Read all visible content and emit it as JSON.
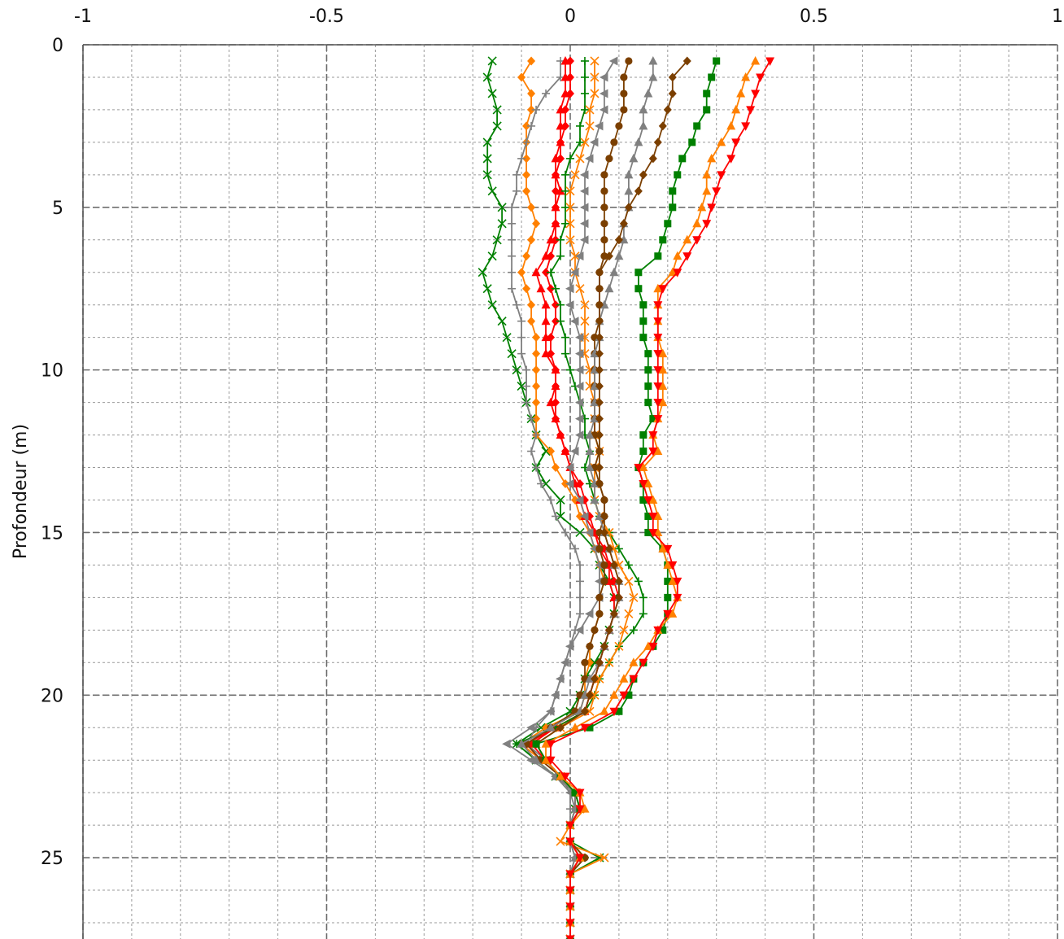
{
  "chart_data": {
    "type": "line",
    "title": "",
    "xlabel": "",
    "ylabel": "Profondeur (m)",
    "xlim": [
      -1,
      1
    ],
    "ylim": [
      0,
      27.5
    ],
    "y_inverted": true,
    "x_axis_position": "top",
    "grid": true,
    "grid_style": "dashed",
    "x_ticks": [
      -1,
      -0.5,
      0,
      0.5,
      1
    ],
    "x_tick_labels": [
      "-1",
      "-0.5",
      "0",
      "0.5",
      "1"
    ],
    "y_ticks": [
      0,
      5,
      10,
      15,
      20,
      25
    ],
    "y_tick_labels": [
      "0",
      "5",
      "10",
      "15",
      "20",
      "25"
    ],
    "x_minor_step": 0.1,
    "y_minor_step": 1,
    "depths": [
      0.5,
      1,
      1.5,
      2,
      2.5,
      3,
      3.5,
      4,
      4.5,
      5,
      5.5,
      6,
      6.5,
      7,
      7.5,
      8,
      8.5,
      9,
      9.5,
      10,
      10.5,
      11,
      11.5,
      12,
      12.5,
      13,
      13.5,
      14,
      14.5,
      15,
      15.5,
      16,
      16.5,
      17,
      17.5,
      18,
      18.5,
      19,
      19.5,
      20,
      20.5,
      21,
      21.5,
      22,
      22.5,
      23,
      23.5,
      24,
      24.5,
      25,
      25.5,
      26,
      26.5,
      27,
      27.5
    ],
    "series": [
      {
        "color": "#008000",
        "marker": "x",
        "values": [
          -0.16,
          -0.17,
          -0.16,
          -0.15,
          -0.15,
          -0.17,
          -0.17,
          -0.17,
          -0.16,
          -0.14,
          -0.14,
          -0.15,
          -0.16,
          -0.18,
          -0.17,
          -0.16,
          -0.14,
          -0.13,
          -0.12,
          -0.11,
          -0.1,
          -0.09,
          -0.08,
          -0.07,
          -0.05,
          -0.07,
          -0.05,
          -0.02,
          -0.02,
          0.02,
          0.05,
          0.06,
          0.08,
          0.09,
          0.09,
          0.08,
          0.07,
          0.05,
          0.03,
          0.02,
          0.0,
          -0.06,
          -0.11,
          -0.07,
          -0.03,
          0.01,
          0.01,
          0.0,
          0.0,
          0.06,
          0,
          0,
          0,
          0,
          0
        ]
      },
      {
        "color": "#ff8000",
        "marker": "diamond",
        "values": [
          -0.08,
          -0.1,
          -0.08,
          -0.08,
          -0.09,
          -0.09,
          -0.09,
          -0.09,
          -0.09,
          -0.08,
          -0.07,
          -0.08,
          -0.09,
          -0.1,
          -0.09,
          -0.08,
          -0.08,
          -0.07,
          -0.07,
          -0.07,
          -0.07,
          -0.07,
          -0.07,
          -0.07,
          -0.04,
          -0.03,
          -0.01,
          0.01,
          0.02,
          0.04,
          0.05,
          0.06,
          0.07,
          0.06,
          0.06,
          0.05,
          0.04,
          0.04,
          0.03,
          0.03,
          0.02,
          -0.05,
          -0.1,
          -0.06,
          -0.02,
          0.01,
          0.02,
          0.0,
          0.0,
          0.03,
          0,
          0,
          0,
          0,
          0
        ]
      },
      {
        "color": "#808080",
        "marker": "plus",
        "values": [
          -0.02,
          -0.02,
          -0.05,
          -0.07,
          -0.08,
          -0.09,
          -0.1,
          -0.11,
          -0.11,
          -0.12,
          -0.12,
          -0.12,
          -0.12,
          -0.12,
          -0.12,
          -0.11,
          -0.1,
          -0.1,
          -0.1,
          -0.09,
          -0.09,
          -0.09,
          -0.08,
          -0.07,
          -0.08,
          -0.07,
          -0.06,
          -0.04,
          -0.03,
          -0.01,
          0.01,
          0.02,
          0.02,
          0.02,
          0.02,
          0.01,
          0.0,
          -0.01,
          -0.02,
          -0.03,
          -0.04,
          -0.07,
          -0.09,
          -0.05,
          -0.02,
          0.0,
          0.0,
          0.0,
          0.0,
          0.01,
          0,
          0,
          0,
          0,
          0
        ]
      },
      {
        "color": "#ff0000",
        "marker": "diamond",
        "values": [
          0.0,
          0.0,
          0.0,
          -0.01,
          -0.01,
          -0.02,
          -0.02,
          -0.03,
          -0.03,
          -0.03,
          -0.03,
          -0.03,
          -0.04,
          -0.05,
          -0.04,
          -0.03,
          -0.03,
          -0.04,
          -0.04,
          -0.03,
          -0.03,
          -0.03,
          -0.03,
          -0.02,
          -0.01,
          0.0,
          0.02,
          0.03,
          0.04,
          0.05,
          0.07,
          0.08,
          0.09,
          0.1,
          0.09,
          0.08,
          0.07,
          0.06,
          0.05,
          0.04,
          0.03,
          -0.03,
          -0.09,
          -0.06,
          -0.02,
          0.01,
          0.01,
          0.0,
          0.0,
          0.02,
          0,
          0,
          0,
          0,
          0
        ]
      },
      {
        "color": "#ff0000",
        "marker": "triangle",
        "values": [
          -0.01,
          -0.01,
          -0.01,
          -0.02,
          -0.02,
          -0.02,
          -0.03,
          -0.03,
          -0.02,
          -0.03,
          -0.03,
          -0.04,
          -0.05,
          -0.07,
          -0.06,
          -0.05,
          -0.05,
          -0.05,
          -0.05,
          -0.03,
          -0.03,
          -0.04,
          -0.03,
          -0.02,
          -0.01,
          0.0,
          0.01,
          0.02,
          0.03,
          0.05,
          0.06,
          0.08,
          0.08,
          0.09,
          0.09,
          0.08,
          0.07,
          0.06,
          0.05,
          0.04,
          0.03,
          -0.03,
          -0.08,
          -0.05,
          -0.02,
          0.01,
          0.02,
          0.0,
          0.0,
          0.02,
          0,
          0,
          0,
          0,
          0
        ]
      },
      {
        "color": "#008000",
        "marker": "plus",
        "values": [
          0.03,
          0.03,
          0.03,
          0.03,
          0.02,
          0.02,
          0.0,
          -0.01,
          -0.01,
          -0.01,
          -0.01,
          -0.02,
          -0.02,
          -0.04,
          -0.03,
          -0.02,
          -0.02,
          -0.01,
          -0.01,
          0.0,
          0.01,
          0.02,
          0.03,
          0.03,
          0.04,
          0.03,
          0.04,
          0.05,
          0.06,
          0.08,
          0.1,
          0.12,
          0.14,
          0.15,
          0.15,
          0.13,
          0.1,
          0.08,
          0.06,
          0.05,
          0.03,
          -0.03,
          -0.11,
          -0.07,
          -0.03,
          0.01,
          0.02,
          0.0,
          0.0,
          0.03,
          0,
          0,
          0,
          0,
          0
        ]
      },
      {
        "color": "#ff8000",
        "marker": "x",
        "values": [
          0.05,
          0.05,
          0.05,
          0.04,
          0.04,
          0.03,
          0.02,
          0.01,
          0.0,
          0.0,
          0.0,
          0.0,
          0.01,
          0.01,
          0.02,
          0.03,
          0.03,
          0.03,
          0.03,
          0.04,
          0.04,
          0.05,
          0.05,
          0.05,
          0.06,
          0.05,
          0.05,
          0.05,
          0.06,
          0.08,
          0.09,
          0.1,
          0.12,
          0.13,
          0.12,
          0.11,
          0.1,
          0.08,
          0.06,
          0.05,
          0.04,
          -0.02,
          -0.07,
          -0.05,
          -0.02,
          0.01,
          0.02,
          0.0,
          -0.02,
          0.07,
          0,
          0,
          0,
          0,
          0
        ]
      },
      {
        "color": "#808080",
        "marker": "triangle-left",
        "values": [
          0.09,
          0.07,
          0.07,
          0.07,
          0.06,
          0.05,
          0.04,
          0.03,
          0.03,
          0.03,
          0.03,
          0.03,
          0.02,
          0.01,
          0.0,
          0.0,
          0.01,
          0.02,
          0.02,
          0.02,
          0.02,
          0.02,
          0.02,
          0.02,
          0.01,
          0.0,
          0.0,
          0.02,
          0.03,
          0.04,
          0.05,
          0.06,
          0.06,
          0.06,
          0.04,
          0.02,
          0.0,
          -0.01,
          -0.02,
          -0.03,
          -0.04,
          -0.08,
          -0.13,
          -0.08,
          -0.03,
          0.0,
          0.01,
          0.0,
          0.0,
          0.01,
          0,
          0,
          0,
          0,
          0
        ]
      },
      {
        "color": "#7b3f00",
        "marker": "circle",
        "values": [
          0.12,
          0.11,
          0.11,
          0.11,
          0.1,
          0.09,
          0.08,
          0.07,
          0.07,
          0.07,
          0.07,
          0.07,
          0.07,
          0.06,
          0.06,
          0.06,
          0.06,
          0.05,
          0.05,
          0.05,
          0.05,
          0.05,
          0.05,
          0.05,
          0.06,
          0.05,
          0.06,
          0.07,
          0.07,
          0.06,
          0.06,
          0.07,
          0.07,
          0.06,
          0.06,
          0.05,
          0.04,
          0.03,
          0.03,
          0.02,
          0.01,
          -0.04,
          -0.09,
          -0.06,
          -0.02,
          0.01,
          0.02,
          0.0,
          0.0,
          0.03,
          0,
          0,
          0,
          0,
          0
        ]
      },
      {
        "color": "#808080",
        "marker": "triangle",
        "values": [
          0.17,
          0.17,
          0.16,
          0.15,
          0.15,
          0.14,
          0.13,
          0.12,
          0.12,
          0.12,
          0.11,
          0.11,
          0.1,
          0.09,
          0.08,
          0.07,
          0.06,
          0.06,
          0.05,
          0.05,
          0.05,
          0.05,
          0.05,
          0.04,
          0.04,
          0.04,
          0.05,
          0.05,
          0.06,
          0.07,
          0.08,
          0.09,
          0.1,
          0.1,
          0.09,
          0.08,
          0.07,
          0.06,
          0.04,
          0.03,
          0.02,
          -0.04,
          -0.1,
          -0.07,
          -0.03,
          0.01,
          0.01,
          0.0,
          0.0,
          0.01,
          0,
          0,
          0,
          0,
          0
        ]
      },
      {
        "color": "#7b3f00",
        "marker": "diamond",
        "values": [
          0.24,
          0.21,
          0.21,
          0.2,
          0.19,
          0.18,
          0.17,
          0.15,
          0.14,
          0.12,
          0.11,
          0.1,
          0.08,
          0.06,
          0.06,
          0.06,
          0.06,
          0.06,
          0.06,
          0.06,
          0.06,
          0.06,
          0.06,
          0.06,
          0.06,
          0.06,
          0.06,
          0.07,
          0.07,
          0.07,
          0.08,
          0.09,
          0.1,
          0.1,
          0.09,
          0.08,
          0.07,
          0.06,
          0.05,
          0.04,
          0.03,
          -0.02,
          -0.07,
          -0.05,
          -0.02,
          0.01,
          0.02,
          0.0,
          0.0,
          0.02,
          0,
          0,
          0,
          0,
          0
        ]
      },
      {
        "color": "#008000",
        "marker": "square",
        "values": [
          0.3,
          0.29,
          0.28,
          0.28,
          0.26,
          0.25,
          0.23,
          0.22,
          0.21,
          0.21,
          0.2,
          0.19,
          0.18,
          0.14,
          0.14,
          0.15,
          0.15,
          0.15,
          0.16,
          0.16,
          0.16,
          0.16,
          0.17,
          0.15,
          0.15,
          0.14,
          0.15,
          0.15,
          0.16,
          0.16,
          0.19,
          0.2,
          0.2,
          0.2,
          0.2,
          0.19,
          0.17,
          0.15,
          0.13,
          0.12,
          0.1,
          0.04,
          -0.07,
          -0.05,
          -0.02,
          0.01,
          0.02,
          0.0,
          0.0,
          0.02,
          0,
          0,
          0,
          0,
          0
        ]
      },
      {
        "color": "#ff8000",
        "marker": "triangle",
        "values": [
          0.38,
          0.36,
          0.35,
          0.34,
          0.33,
          0.31,
          0.29,
          0.28,
          0.28,
          0.27,
          0.26,
          0.24,
          0.22,
          0.21,
          0.18,
          0.18,
          0.18,
          0.18,
          0.19,
          0.19,
          0.19,
          0.19,
          0.18,
          0.17,
          0.18,
          0.15,
          0.16,
          0.17,
          0.18,
          0.18,
          0.19,
          0.2,
          0.21,
          0.22,
          0.21,
          0.18,
          0.16,
          0.13,
          0.11,
          0.09,
          0.07,
          0.01,
          -0.05,
          -0.05,
          -0.02,
          0.02,
          0.03,
          0.0,
          0.0,
          0.02,
          0,
          0,
          0,
          0,
          0
        ]
      },
      {
        "color": "#ff0000",
        "marker": "triangle-down",
        "values": [
          0.41,
          0.39,
          0.38,
          0.37,
          0.36,
          0.34,
          0.33,
          0.31,
          0.3,
          0.29,
          0.28,
          0.26,
          0.24,
          0.22,
          0.19,
          0.18,
          0.18,
          0.18,
          0.18,
          0.18,
          0.18,
          0.18,
          0.18,
          0.17,
          0.17,
          0.14,
          0.15,
          0.16,
          0.17,
          0.17,
          0.2,
          0.21,
          0.22,
          0.22,
          0.2,
          0.18,
          0.17,
          0.15,
          0.13,
          0.11,
          0.09,
          0.03,
          -0.04,
          -0.04,
          -0.01,
          0.02,
          0.02,
          0.0,
          0.0,
          0.02,
          0,
          0,
          0,
          0,
          0
        ]
      }
    ]
  }
}
